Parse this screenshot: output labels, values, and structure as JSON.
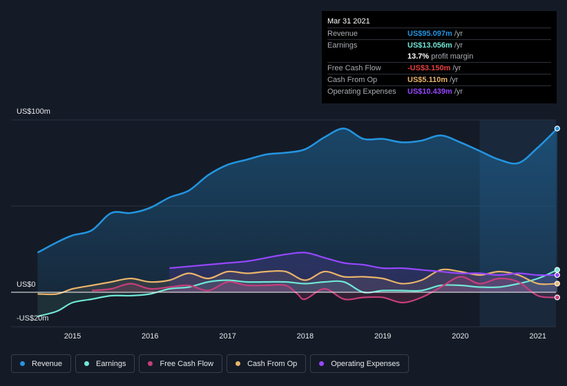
{
  "tooltip": {
    "date": "Mar 31 2021",
    "rows": [
      {
        "label": "Revenue",
        "value": "US$95.097m",
        "unit": "/yr",
        "color": "#2394df"
      },
      {
        "label": "Earnings",
        "value": "US$13.056m",
        "unit": "/yr",
        "color": "#71e7d6"
      },
      {
        "label": "",
        "value": "13.7%",
        "unit": "profit margin",
        "color": "#ffffff"
      },
      {
        "label": "Free Cash Flow",
        "value": "-US$3.150m",
        "unit": "/yr",
        "color": "#e64141"
      },
      {
        "label": "Cash From Op",
        "value": "US$5.110m",
        "unit": "/yr",
        "color": "#e9b46a"
      },
      {
        "label": "Operating Expenses",
        "value": "US$10.439m",
        "unit": "/yr",
        "color": "#9747ff"
      }
    ]
  },
  "legend": [
    {
      "label": "Revenue",
      "color": "#2394df"
    },
    {
      "label": "Earnings",
      "color": "#71e7d6"
    },
    {
      "label": "Free Cash Flow",
      "color": "#c73e7c"
    },
    {
      "label": "Cash From Op",
      "color": "#e9b46a"
    },
    {
      "label": "Operating Expenses",
      "color": "#9747ff"
    }
  ],
  "chart_data": {
    "type": "line",
    "title": "",
    "xlabel": "",
    "ylabel": "",
    "ylim": [
      -20,
      100
    ],
    "xlim": [
      2014.55,
      2021.25
    ],
    "y_tick_labels": [
      {
        "value": 100,
        "label": "US$100m"
      },
      {
        "value": 0,
        "label": "US$0"
      },
      {
        "value": -20,
        "label": "-US$20m"
      }
    ],
    "x_tick_labels": [
      "2015",
      "2016",
      "2017",
      "2018",
      "2019",
      "2020",
      "2021"
    ],
    "forecast_start": 2020.25,
    "series": [
      {
        "name": "Revenue",
        "color": "#2394df",
        "points": [
          [
            2014.55,
            23
          ],
          [
            2014.8,
            29
          ],
          [
            2015.0,
            33
          ],
          [
            2015.25,
            36
          ],
          [
            2015.5,
            46
          ],
          [
            2015.75,
            46
          ],
          [
            2016.0,
            49
          ],
          [
            2016.25,
            55
          ],
          [
            2016.5,
            59
          ],
          [
            2016.75,
            68
          ],
          [
            2017.0,
            74
          ],
          [
            2017.25,
            77
          ],
          [
            2017.5,
            80
          ],
          [
            2017.75,
            81
          ],
          [
            2018.0,
            83
          ],
          [
            2018.25,
            90
          ],
          [
            2018.5,
            95
          ],
          [
            2018.75,
            89
          ],
          [
            2019.0,
            89
          ],
          [
            2019.25,
            87
          ],
          [
            2019.5,
            88
          ],
          [
            2019.75,
            91
          ],
          [
            2020.0,
            87
          ],
          [
            2020.25,
            82
          ],
          [
            2020.5,
            77
          ],
          [
            2020.75,
            75
          ],
          [
            2021.0,
            84
          ],
          [
            2021.25,
            95
          ]
        ]
      },
      {
        "name": "Earnings",
        "color": "#71e7d6",
        "points": [
          [
            2014.55,
            -14
          ],
          [
            2014.8,
            -11
          ],
          [
            2015.0,
            -6
          ],
          [
            2015.25,
            -4
          ],
          [
            2015.5,
            -2
          ],
          [
            2015.75,
            -2
          ],
          [
            2016.0,
            -1
          ],
          [
            2016.25,
            2
          ],
          [
            2016.5,
            3
          ],
          [
            2016.75,
            6
          ],
          [
            2017.0,
            7
          ],
          [
            2017.25,
            6
          ],
          [
            2017.5,
            6
          ],
          [
            2017.75,
            6
          ],
          [
            2018.0,
            5
          ],
          [
            2018.25,
            6
          ],
          [
            2018.5,
            6
          ],
          [
            2018.75,
            0
          ],
          [
            2019.0,
            1
          ],
          [
            2019.25,
            1
          ],
          [
            2019.5,
            1
          ],
          [
            2019.75,
            4
          ],
          [
            2020.0,
            4
          ],
          [
            2020.25,
            3
          ],
          [
            2020.5,
            3
          ],
          [
            2020.75,
            5
          ],
          [
            2021.0,
            8
          ],
          [
            2021.25,
            13
          ]
        ]
      },
      {
        "name": "Free Cash Flow",
        "color": "#c73e7c",
        "points": [
          [
            2015.25,
            1
          ],
          [
            2015.5,
            2
          ],
          [
            2015.75,
            5
          ],
          [
            2016.0,
            2
          ],
          [
            2016.25,
            3
          ],
          [
            2016.5,
            4
          ],
          [
            2016.75,
            1
          ],
          [
            2017.0,
            6
          ],
          [
            2017.25,
            4
          ],
          [
            2017.5,
            4
          ],
          [
            2017.75,
            4
          ],
          [
            2017.9,
            -1
          ],
          [
            2018.0,
            -4
          ],
          [
            2018.25,
            2
          ],
          [
            2018.5,
            -4
          ],
          [
            2018.75,
            -3
          ],
          [
            2019.0,
            -3
          ],
          [
            2019.25,
            -6
          ],
          [
            2019.5,
            -3
          ],
          [
            2019.75,
            3
          ],
          [
            2020.0,
            9
          ],
          [
            2020.25,
            5
          ],
          [
            2020.5,
            8
          ],
          [
            2020.75,
            6
          ],
          [
            2021.0,
            -2
          ],
          [
            2021.25,
            -3
          ]
        ]
      },
      {
        "name": "Cash From Op",
        "color": "#e9b46a",
        "points": [
          [
            2014.55,
            -1
          ],
          [
            2014.8,
            -1
          ],
          [
            2015.0,
            2
          ],
          [
            2015.25,
            4
          ],
          [
            2015.5,
            6
          ],
          [
            2015.75,
            8
          ],
          [
            2016.0,
            6
          ],
          [
            2016.25,
            7
          ],
          [
            2016.5,
            11
          ],
          [
            2016.75,
            8
          ],
          [
            2017.0,
            12
          ],
          [
            2017.25,
            11
          ],
          [
            2017.5,
            12
          ],
          [
            2017.75,
            12
          ],
          [
            2018.0,
            7
          ],
          [
            2018.25,
            12
          ],
          [
            2018.5,
            9
          ],
          [
            2018.75,
            9
          ],
          [
            2019.0,
            8
          ],
          [
            2019.25,
            5
          ],
          [
            2019.5,
            7
          ],
          [
            2019.75,
            13
          ],
          [
            2020.0,
            12
          ],
          [
            2020.25,
            10
          ],
          [
            2020.5,
            12
          ],
          [
            2020.75,
            10
          ],
          [
            2021.0,
            5
          ],
          [
            2021.25,
            5
          ]
        ]
      },
      {
        "name": "Operating Expenses",
        "color": "#9747ff",
        "points": [
          [
            2016.25,
            14
          ],
          [
            2016.5,
            15
          ],
          [
            2016.75,
            16
          ],
          [
            2017.0,
            17
          ],
          [
            2017.25,
            18
          ],
          [
            2017.5,
            20
          ],
          [
            2017.75,
            22
          ],
          [
            2018.0,
            23
          ],
          [
            2018.25,
            20
          ],
          [
            2018.5,
            17
          ],
          [
            2018.75,
            16
          ],
          [
            2019.0,
            14
          ],
          [
            2019.25,
            14
          ],
          [
            2019.5,
            13
          ],
          [
            2019.75,
            12
          ],
          [
            2020.0,
            11
          ],
          [
            2020.25,
            11
          ],
          [
            2020.5,
            10
          ],
          [
            2020.75,
            11
          ],
          [
            2021.0,
            10
          ],
          [
            2021.25,
            10
          ]
        ]
      }
    ]
  }
}
